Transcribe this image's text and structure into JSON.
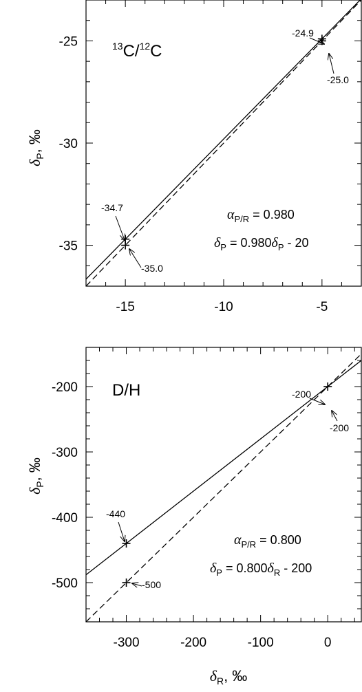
{
  "chart_data": [
    {
      "type": "line",
      "title_iso_heavy": "13",
      "title_elem_heavy": "C",
      "title_slash": "/",
      "title_iso_light": "12",
      "title_elem_light": "C",
      "ylabel_main": "δ",
      "ylabel_sub": "P",
      "ylabel_unit": ", ‰",
      "xlim": [
        -17,
        -3
      ],
      "ylim": [
        -37,
        -23
      ],
      "xticks": [
        -15,
        -10,
        -5
      ],
      "yticks": [
        -35,
        -30,
        -25
      ],
      "series": [
        {
          "style": "solid",
          "x": [
            -17,
            -3
          ],
          "y": [
            -36.66,
            -22.94
          ]
        },
        {
          "style": "dashed",
          "x": [
            -17,
            -3
          ],
          "y": [
            -37,
            -23
          ]
        }
      ],
      "markers": [
        {
          "x": -15,
          "y": -34.7
        },
        {
          "x": -15,
          "y": -35.0
        },
        {
          "x": -5,
          "y": -24.9
        },
        {
          "x": -5,
          "y": -25.0
        }
      ],
      "annotations": [
        {
          "text": "-34.7",
          "x": -15,
          "y": -34.7
        },
        {
          "text": "-35.0",
          "x": -15,
          "y": -35.0
        },
        {
          "text": "-24.9",
          "x": -5,
          "y": -24.9
        },
        {
          "text": "-25.0",
          "x": -5,
          "y": -25.0
        }
      ],
      "eq1": {
        "sym": "α",
        "sub": "P/R",
        "rest": " = 0.980"
      },
      "eq2": {
        "sym": "δ",
        "sub": "P",
        "mid": " = 0.980",
        "sym2": "δ",
        "sub2": "P",
        "rest": " - 20"
      }
    },
    {
      "type": "line",
      "title": "D/H",
      "ylabel_main": "δ",
      "ylabel_sub": "P",
      "ylabel_unit": ", ‰",
      "xlabel_main": "δ",
      "xlabel_sub": "R",
      "xlabel_unit": ", ‰",
      "xlim": [
        -360,
        50
      ],
      "ylim": [
        -560,
        -140
      ],
      "xticks": [
        -300,
        -200,
        -100,
        0
      ],
      "yticks": [
        -500,
        -400,
        -300,
        -200
      ],
      "series": [
        {
          "style": "solid",
          "x": [
            -360,
            50
          ],
          "y": [
            -488,
            -160
          ]
        },
        {
          "style": "dashed",
          "x": [
            -360,
            50
          ],
          "y": [
            -560,
            -150
          ]
        }
      ],
      "markers": [
        {
          "x": -300,
          "y": -440
        },
        {
          "x": -300,
          "y": -500
        },
        {
          "x": 0,
          "y": -200
        }
      ],
      "annotations": [
        {
          "text": "-440",
          "x": -300,
          "y": -440
        },
        {
          "text": "-500",
          "x": -300,
          "y": -500
        },
        {
          "text": "-200",
          "x": 0,
          "y": -200
        },
        {
          "text": "-200",
          "x": 0,
          "y": -200
        }
      ],
      "eq1": {
        "sym": "α",
        "sub": "P/R",
        "rest": " = 0.800"
      },
      "eq2": {
        "sym": "δ",
        "sub": "P",
        "mid": " = 0.800",
        "sym2": "δ",
        "sub2": "R",
        "rest": " - 200"
      }
    }
  ]
}
